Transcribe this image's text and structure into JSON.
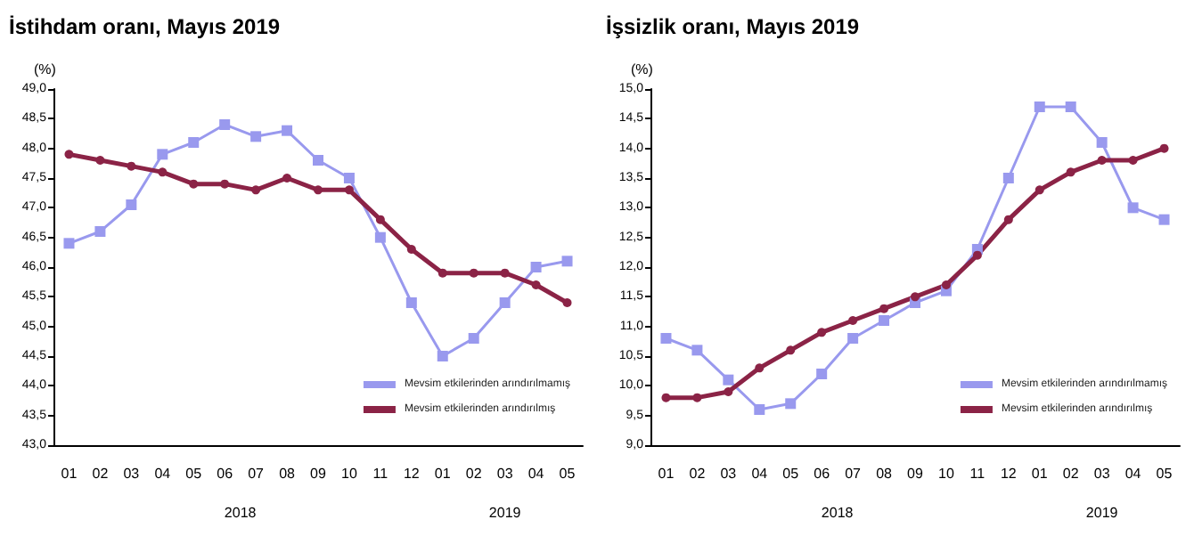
{
  "chart_data": [
    {
      "type": "line",
      "title": "İstihdam oranı, Mayıs 2019",
      "ylabel": "(%)",
      "categories": [
        "01",
        "02",
        "03",
        "04",
        "05",
        "06",
        "07",
        "08",
        "09",
        "10",
        "11",
        "12",
        "01",
        "02",
        "03",
        "04",
        "05"
      ],
      "annotations": [
        "2018",
        "2019"
      ],
      "series": [
        {
          "name": "Mevsim etkilerinden arındırılmamış",
          "color": "#9999ee",
          "marker": "square",
          "values": [
            46.4,
            46.6,
            47.05,
            47.9,
            48.1,
            48.4,
            48.2,
            48.3,
            47.8,
            47.5,
            46.5,
            45.4,
            44.5,
            44.8,
            45.4,
            46.0,
            46.1
          ]
        },
        {
          "name": "Mevsim etkilerinden arındırılmış",
          "color": "#8b2346",
          "marker": "circle",
          "values": [
            47.9,
            47.8,
            47.7,
            47.6,
            47.4,
            47.4,
            47.3,
            47.5,
            47.3,
            47.3,
            46.8,
            46.3,
            45.9,
            45.9,
            45.9,
            45.7,
            45.4
          ]
        }
      ],
      "ylim": [
        43,
        49
      ],
      "yticks": [
        {
          "value": 43,
          "label": "43,0"
        },
        {
          "value": 43.5,
          "label": "43,5"
        },
        {
          "value": 44,
          "label": "44,0"
        },
        {
          "value": 44.5,
          "label": "44,5"
        },
        {
          "value": 45,
          "label": "45,0"
        },
        {
          "value": 45.5,
          "label": "45,5"
        },
        {
          "value": 46,
          "label": "46,0"
        },
        {
          "value": 46.5,
          "label": "46,5"
        },
        {
          "value": 47,
          "label": "47,0"
        },
        {
          "value": 47.5,
          "label": "47,5"
        },
        {
          "value": 48,
          "label": "48,0"
        },
        {
          "value": 48.5,
          "label": "48,5"
        },
        {
          "value": 49,
          "label": "49,0"
        }
      ],
      "grid": false,
      "legend": "bottom right"
    },
    {
      "type": "line",
      "title": "İşsizlik oranı, Mayıs 2019",
      "ylabel": "(%)",
      "categories": [
        "01",
        "02",
        "03",
        "04",
        "05",
        "06",
        "07",
        "08",
        "09",
        "10",
        "11",
        "12",
        "01",
        "02",
        "03",
        "04",
        "05"
      ],
      "annotations": [
        "2018",
        "2019"
      ],
      "series": [
        {
          "name": "Mevsim etkilerinden arındırılmamış",
          "color": "#9999ee",
          "marker": "square",
          "values": [
            10.8,
            10.6,
            10.1,
            9.6,
            9.7,
            10.2,
            10.8,
            11.1,
            11.4,
            11.6,
            12.3,
            13.5,
            14.7,
            14.7,
            14.1,
            13.0,
            12.8
          ]
        },
        {
          "name": "Mevsim etkilerinden arındırılmış",
          "color": "#8b2346",
          "marker": "circle",
          "values": [
            9.8,
            9.8,
            9.9,
            10.3,
            10.6,
            10.9,
            11.1,
            11.3,
            11.5,
            11.7,
            12.2,
            12.8,
            13.3,
            13.6,
            13.8,
            13.8,
            14.0
          ]
        }
      ],
      "ylim": [
        9,
        15
      ],
      "yticks": [
        {
          "value": 9,
          "label": "9,0"
        },
        {
          "value": 9.5,
          "label": "9,5"
        },
        {
          "value": 10,
          "label": "10,0"
        },
        {
          "value": 10.5,
          "label": "10,5"
        },
        {
          "value": 11,
          "label": "11,0"
        },
        {
          "value": 11.5,
          "label": "11,5"
        },
        {
          "value": 12,
          "label": "12,0"
        },
        {
          "value": 12.5,
          "label": "12,5"
        },
        {
          "value": 13,
          "label": "13,0"
        },
        {
          "value": 13.5,
          "label": "13,5"
        },
        {
          "value": 14,
          "label": "14,0"
        },
        {
          "value": 14.5,
          "label": "14,5"
        },
        {
          "value": 15,
          "label": "15,0"
        }
      ],
      "grid": false,
      "legend": "bottom right"
    }
  ]
}
